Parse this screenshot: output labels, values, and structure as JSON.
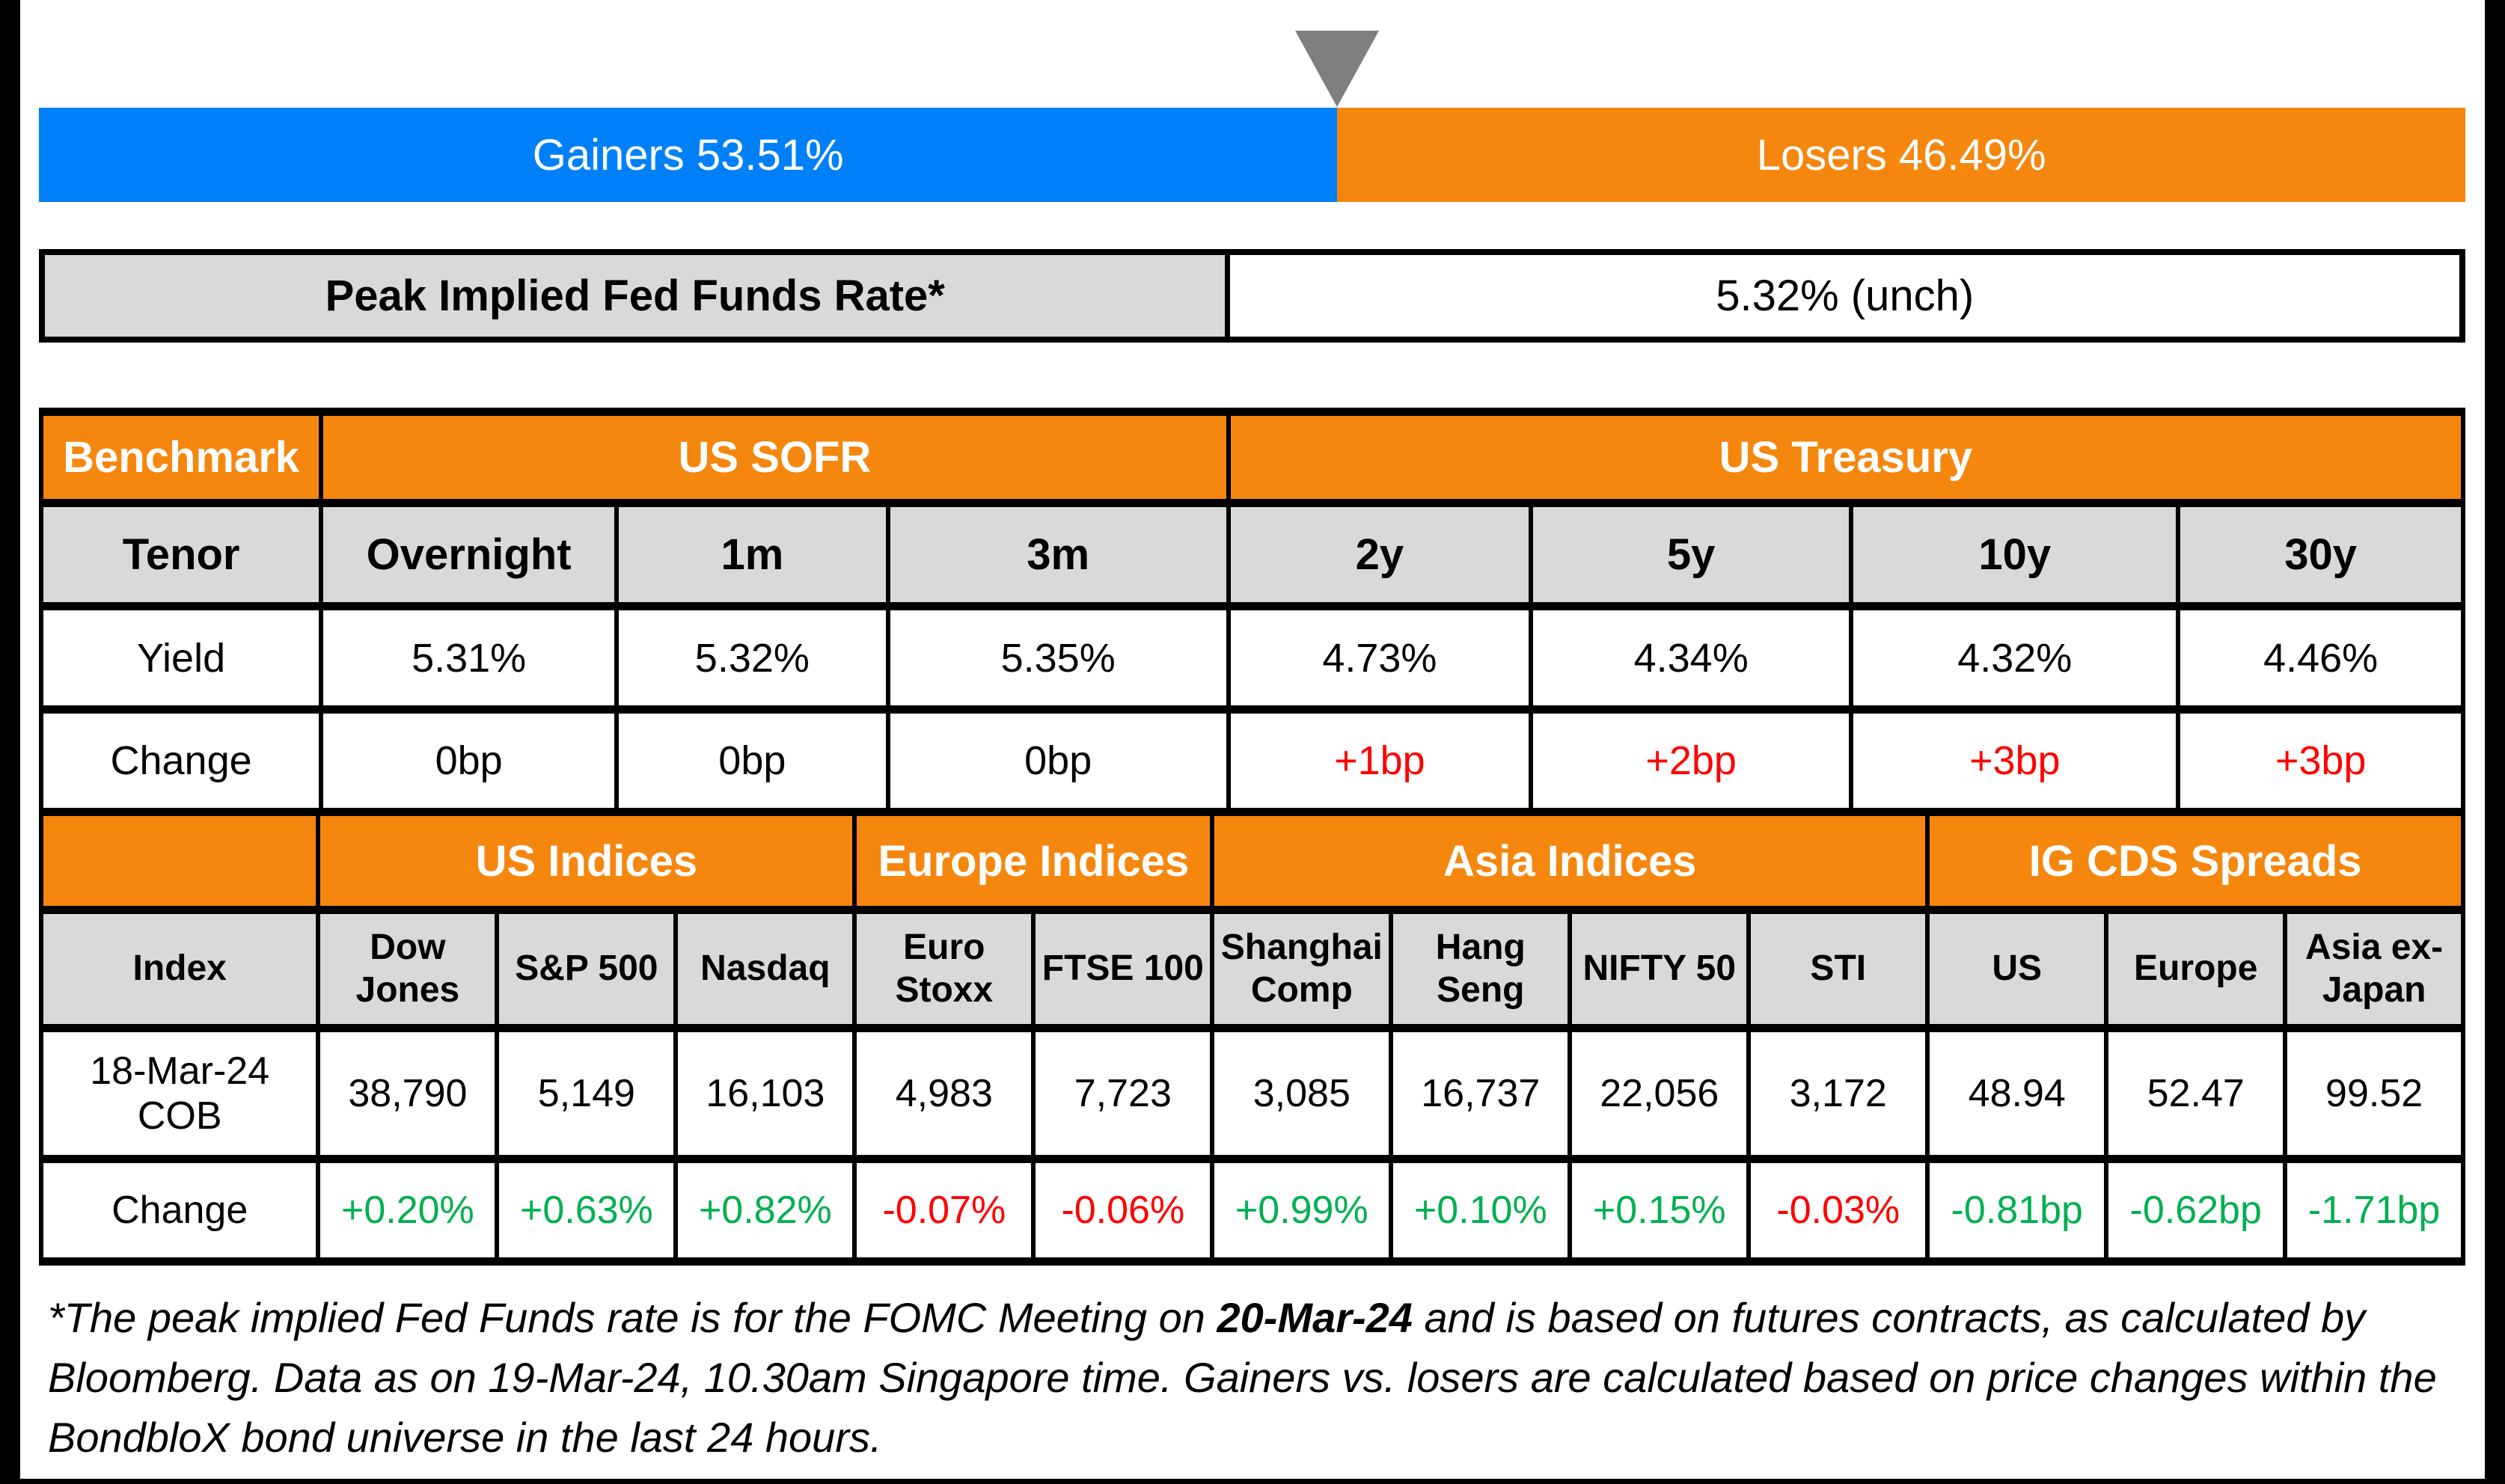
{
  "top_bar": {
    "gainers_label": "Gainers 53.51%",
    "losers_label": "Losers 46.49%",
    "gainers_pct": 53.51,
    "losers_pct": 46.49
  },
  "peak_rate": {
    "label": "Peak Implied Fed Funds Rate*",
    "value": "5.32% (unch)"
  },
  "benchmark_table": {
    "corner_header": "Benchmark",
    "groups": [
      "US SOFR",
      "US Treasury"
    ],
    "row_labels": {
      "tenor": "Tenor",
      "yield": "Yield",
      "change": "Change"
    },
    "tenors": [
      "Overnight",
      "1m",
      "3m",
      "2y",
      "5y",
      "10y",
      "30y"
    ],
    "yields": [
      "5.31%",
      "5.32%",
      "5.35%",
      "4.73%",
      "4.34%",
      "4.32%",
      "4.46%"
    ],
    "changes": [
      "0bp",
      "0bp",
      "0bp",
      "+1bp",
      "+2bp",
      "+3bp",
      "+3bp"
    ]
  },
  "indices_table": {
    "groups": [
      "US Indices",
      "Europe Indices",
      "Asia Indices",
      "IG CDS Spreads"
    ],
    "row_labels": {
      "index": "Index",
      "cob": "18-Mar-24 COB",
      "change": "Change"
    },
    "names": [
      "Dow Jones",
      "S&P 500",
      "Nasdaq",
      "Euro Stoxx",
      "FTSE 100",
      "Shanghai Comp",
      "Hang Seng",
      "NIFTY 50",
      "STI",
      "US",
      "Europe",
      "Asia ex-Japan"
    ],
    "values": [
      "38,790",
      "5,149",
      "16,103",
      "4,983",
      "7,723",
      "3,085",
      "16,737",
      "22,056",
      "3,172",
      "48.94",
      "52.47",
      "99.52"
    ],
    "changes": [
      "+0.20%",
      "+0.63%",
      "+0.82%",
      "-0.07%",
      "-0.06%",
      "+0.99%",
      "+0.10%",
      "+0.15%",
      "-0.03%",
      "-0.81bp",
      "-0.62bp",
      "-1.71bp"
    ]
  },
  "footnote": {
    "part1": "*The peak implied Fed Funds rate is for the FOMC Meeting on ",
    "bold": "20-Mar-24",
    "part2": " and is based on futures contracts, as calculated by Bloomberg. Data as on 19-Mar-24, 10.30am Singapore time. Gainers vs. losers are calculated based on price changes within the BondbloX bond universe in the last 24 hours."
  },
  "colors": {
    "gainers_blue": "#0080F8",
    "losers_orange": "#F5870F",
    "header_orange": "#F5870F",
    "cell_gray": "#D9D9D9",
    "positive_green": "#00B050",
    "negative_red": "#FF0000",
    "marker_gray": "#7F7F7F",
    "border_black": "#000000"
  },
  "chart_data": [
    {
      "type": "bar",
      "title": "Gainers vs Losers (stacked percentage bar)",
      "categories": [
        "Gainers",
        "Losers"
      ],
      "values": [
        53.51,
        46.49
      ],
      "xlabel": "",
      "ylabel": "",
      "ylim": [
        0,
        100
      ],
      "legend_position": "none",
      "annotations": [
        "Gray down-triangle marker at 53.51% split point"
      ]
    },
    {
      "type": "table",
      "title": "Benchmark: US SOFR / US Treasury",
      "columns": [
        "Tenor",
        "Overnight",
        "1m",
        "3m",
        "2y",
        "5y",
        "10y",
        "30y"
      ],
      "rows": [
        [
          "Yield",
          "5.31%",
          "5.32%",
          "5.35%",
          "4.73%",
          "4.34%",
          "4.32%",
          "4.46%"
        ],
        [
          "Change",
          "0bp",
          "0bp",
          "0bp",
          "+1bp",
          "+2bp",
          "+3bp",
          "+3bp"
        ]
      ]
    },
    {
      "type": "table",
      "title": "US / Europe / Asia Indices and IG CDS Spreads",
      "columns": [
        "Index",
        "Dow Jones",
        "S&P 500",
        "Nasdaq",
        "Euro Stoxx",
        "FTSE 100",
        "Shanghai Comp",
        "Hang Seng",
        "NIFTY 50",
        "STI",
        "US",
        "Europe",
        "Asia ex-Japan"
      ],
      "rows": [
        [
          "18-Mar-24 COB",
          "38,790",
          "5,149",
          "16,103",
          "4,983",
          "7,723",
          "3,085",
          "16,737",
          "22,056",
          "3,172",
          "48.94",
          "52.47",
          "99.52"
        ],
        [
          "Change",
          "+0.20%",
          "+0.63%",
          "+0.82%",
          "-0.07%",
          "-0.06%",
          "+0.99%",
          "+0.10%",
          "+0.15%",
          "-0.03%",
          "-0.81bp",
          "-0.62bp",
          "-1.71bp"
        ]
      ]
    }
  ]
}
